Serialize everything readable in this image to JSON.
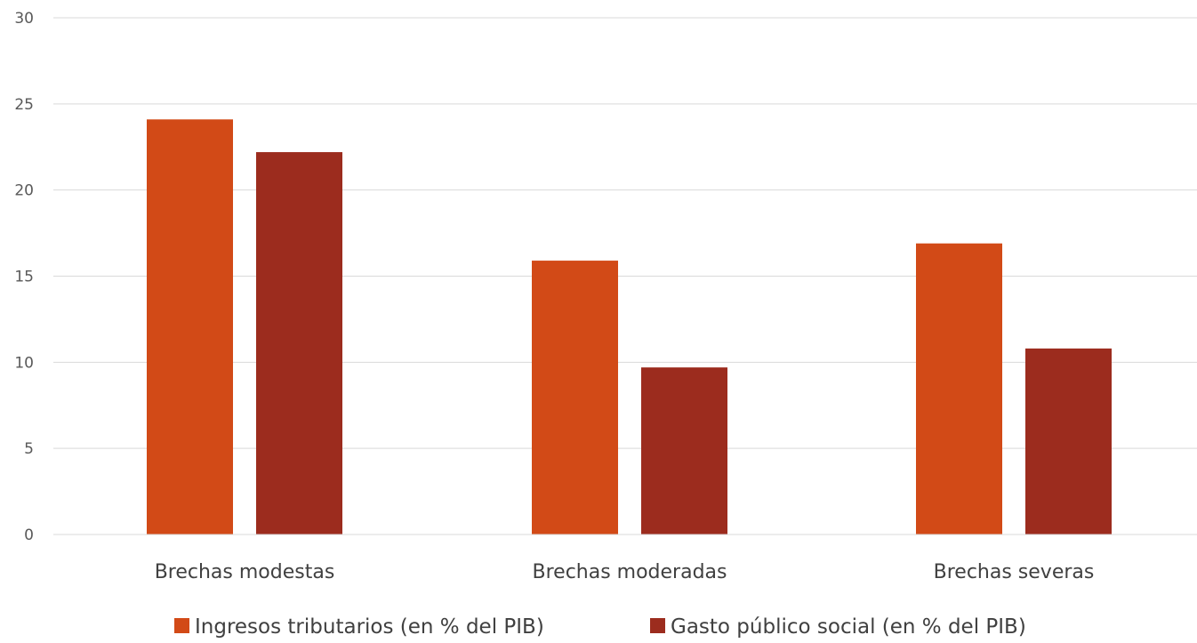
{
  "chart_data": {
    "type": "bar",
    "title": "",
    "xlabel": "",
    "ylabel": "",
    "categories": [
      "Brechas modestas",
      "Brechas moderadas",
      "Brechas severas"
    ],
    "series": [
      {
        "name": "Ingresos tributarios (en % del PIB)",
        "color": "#D24A17",
        "values": [
          24.1,
          15.9,
          16.9
        ]
      },
      {
        "name": "Gasto público social (en % del PIB)",
        "color": "#9C2C1E",
        "values": [
          22.2,
          9.7,
          10.8
        ]
      }
    ],
    "ylim": [
      0,
      30
    ],
    "yticks": [
      0,
      5,
      10,
      15,
      20,
      25,
      30
    ],
    "grid": true,
    "legend_position": "bottom"
  }
}
